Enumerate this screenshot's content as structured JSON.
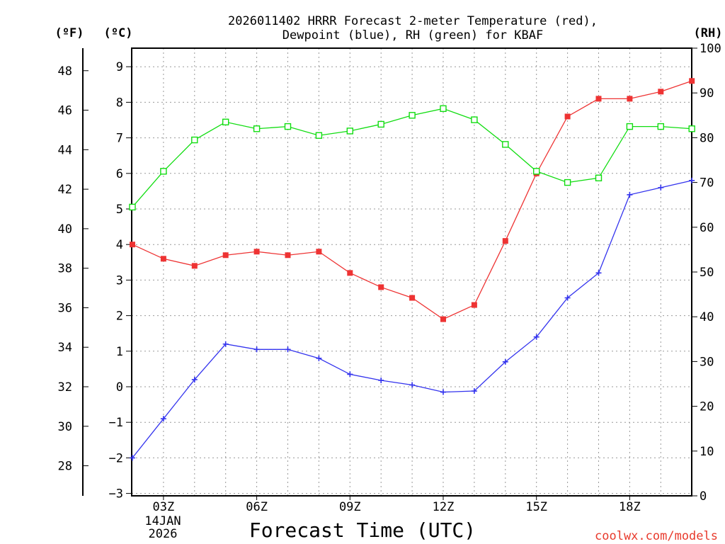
{
  "chart_data": {
    "type": "line",
    "title_line1": "2026011402 HRRR Forecast 2-meter Temperature (red),",
    "title_line2": "Dewpoint (blue), RH (green) for KBAF",
    "xlabel": "Forecast Time (UTC)",
    "date_label_line1": "14JAN",
    "date_label_line2": "2026",
    "credit": "coolwx.com/models",
    "left_outer_unit": "(ºF)",
    "left_inner_unit": "(ºC)",
    "right_unit": "(RH)",
    "x_hours": [
      2,
      3,
      4,
      5,
      6,
      7,
      8,
      9,
      10,
      11,
      12,
      13,
      14,
      15,
      16,
      17,
      18,
      19,
      20
    ],
    "x_tick_hours": [
      3,
      6,
      9,
      12,
      15,
      18
    ],
    "x_tick_labels": [
      "03Z",
      "06Z",
      "09Z",
      "12Z",
      "15Z",
      "18Z"
    ],
    "xlim": [
      2,
      20
    ],
    "celsius_ylim": [
      -3,
      9.5
    ],
    "celsius_ticks": [
      -3,
      -2,
      -1,
      0,
      1,
      2,
      3,
      4,
      5,
      6,
      7,
      8,
      9
    ],
    "fahrenheit_ticks": [
      28,
      30,
      32,
      34,
      36,
      38,
      40,
      42,
      44,
      46,
      48
    ],
    "rh_ylim": [
      0,
      100
    ],
    "rh_ticks": [
      0,
      10,
      20,
      30,
      40,
      50,
      60,
      70,
      80,
      90,
      100
    ],
    "grid": true,
    "series": [
      {
        "name": "2-meter Temperature",
        "units": "°C",
        "axis": "celsius",
        "color": "#ee3333",
        "marker": "filled-square",
        "values": [
          4.0,
          3.6,
          3.4,
          3.7,
          3.8,
          3.7,
          3.8,
          3.2,
          2.8,
          2.5,
          1.9,
          2.3,
          4.1,
          6.0,
          7.6,
          8.1,
          8.1,
          8.3,
          8.6
        ]
      },
      {
        "name": "Dewpoint",
        "units": "°C",
        "axis": "celsius",
        "color": "#3333ee",
        "marker": "plus",
        "values": [
          -2.0,
          -0.9,
          0.2,
          1.2,
          1.05,
          1.05,
          0.8,
          0.35,
          0.18,
          0.05,
          -0.15,
          -0.12,
          0.7,
          1.4,
          2.5,
          3.2,
          5.4,
          5.6,
          5.8
        ]
      },
      {
        "name": "Relative Humidity",
        "units": "%",
        "axis": "rh",
        "color": "#11dd11",
        "marker": "open-square",
        "values": [
          64.5,
          72.5,
          79.5,
          83.5,
          82.0,
          82.5,
          80.5,
          81.5,
          83.0,
          85.0,
          86.5,
          84.0,
          78.5,
          72.5,
          70.0,
          71.0,
          82.5,
          82.5,
          82.0
        ]
      }
    ]
  }
}
